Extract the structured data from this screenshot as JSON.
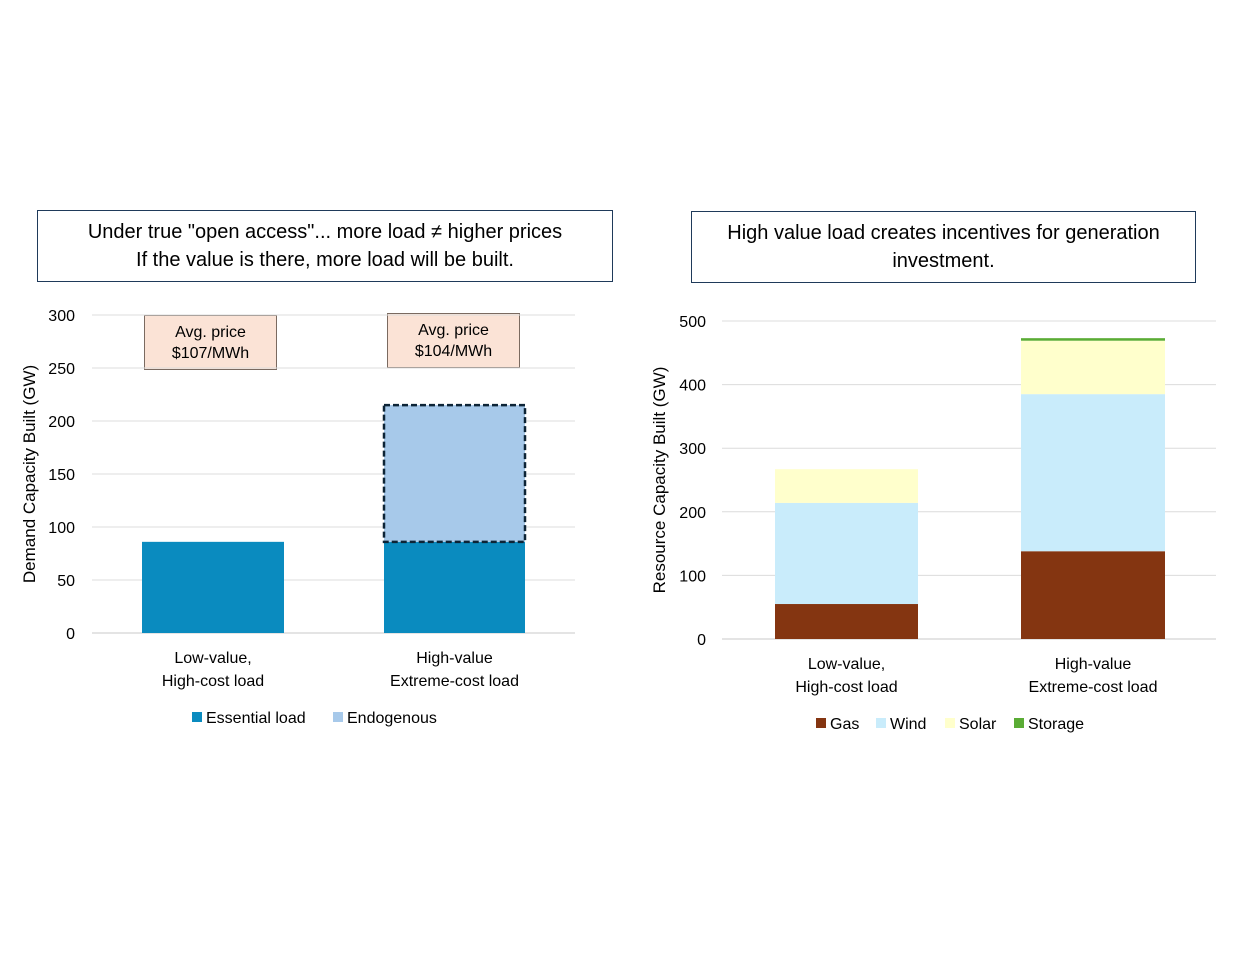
{
  "chart_data": [
    {
      "type": "bar",
      "stacked": true,
      "title": [
        "Under true \"open access\"... more load ≠ higher prices",
        "If the value is there, more load will be built."
      ],
      "categories": [
        [
          "Low-value,",
          "High-cost load"
        ],
        [
          "High-value",
          "Extreme-cost load"
        ]
      ],
      "series": [
        {
          "name": "Essential load",
          "values": [
            86,
            86
          ],
          "color": "#0a8bbf"
        },
        {
          "name": "Endogenous",
          "values": [
            0,
            129
          ],
          "color": "#a7c9ea"
        }
      ],
      "annotations": [
        [
          "Avg. price",
          "$107/MWh"
        ],
        [
          "Avg. price",
          "$104/MWh"
        ]
      ],
      "ylabel": "Demand Capacity Built (GW)",
      "ylim": [
        0,
        300
      ],
      "yticks": [
        0,
        50,
        100,
        150,
        200,
        250,
        300
      ],
      "grid": true,
      "legend": "bottom"
    },
    {
      "type": "bar",
      "stacked": true,
      "title": [
        "High value load creates incentives for generation",
        "investment."
      ],
      "categories": [
        [
          "Low-value,",
          "High-cost load"
        ],
        [
          "High-value",
          "Extreme-cost load"
        ]
      ],
      "series": [
        {
          "name": "Gas",
          "values": [
            55,
            138
          ],
          "color": "#843511"
        },
        {
          "name": "Wind",
          "values": [
            159,
            247
          ],
          "color": "#c9ecfb"
        },
        {
          "name": "Solar",
          "values": [
            53,
            84
          ],
          "color": "#ffffcc"
        },
        {
          "name": "Storage",
          "values": [
            0,
            4
          ],
          "color": "#5aac35"
        }
      ],
      "ylabel": "Resource Capacity Built (GW)",
      "ylim": [
        0,
        500
      ],
      "yticks": [
        0,
        100,
        200,
        300,
        400,
        500
      ],
      "grid": true,
      "legend": "bottom"
    }
  ]
}
